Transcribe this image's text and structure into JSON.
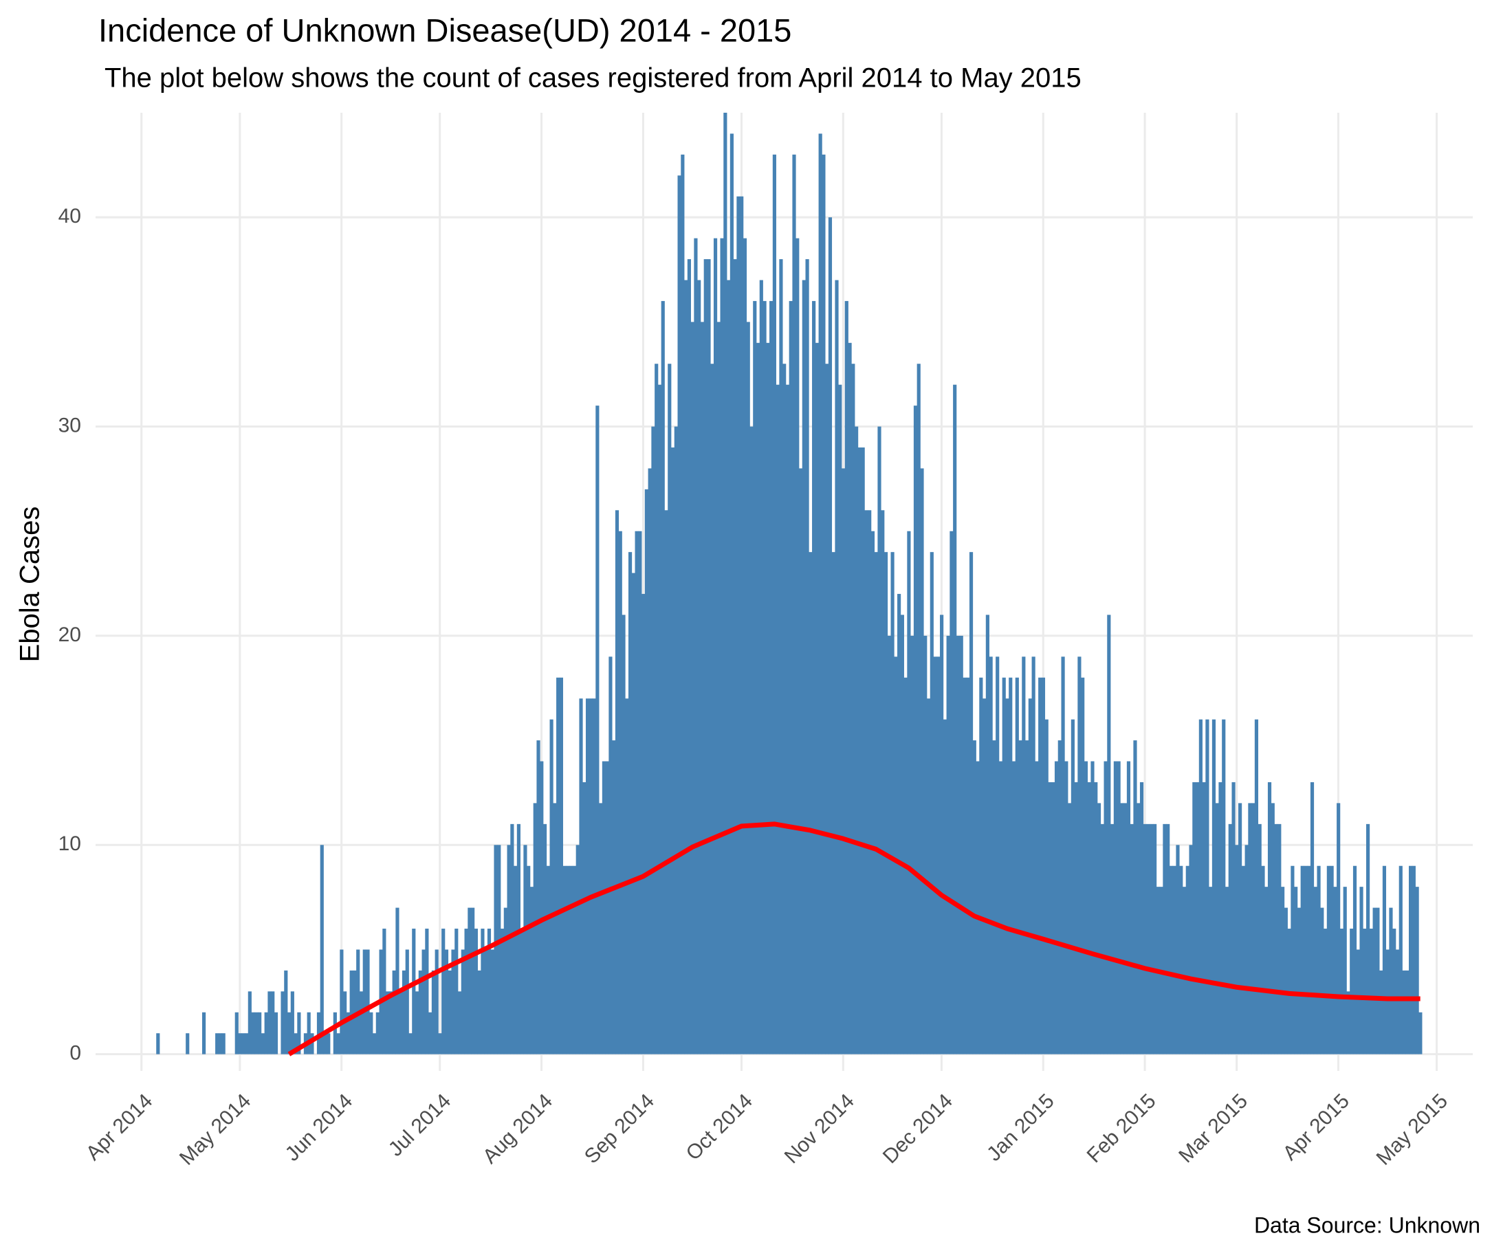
{
  "chart_data": {
    "type": "bar",
    "title": "Incidence of Unknown Disease(UD) 2014 - 2015",
    "subtitle": "The plot below shows the count of cases registered from April 2014 to May 2015",
    "y_label": "Ebola Cases",
    "caption": "Data Source: Unknown",
    "color": "#4682b4",
    "grid": true,
    "xlim": [
      -14,
      406
    ],
    "ylim": [
      -0.8,
      45
    ],
    "yticks": [
      0,
      10,
      20,
      30,
      40
    ],
    "xticks": [
      {
        "value": 0,
        "label": "Apr 2014"
      },
      {
        "value": 30,
        "label": "May 2014"
      },
      {
        "value": 61,
        "label": "Jun 2014"
      },
      {
        "value": 91,
        "label": "Jul 2014"
      },
      {
        "value": 122,
        "label": "Aug 2014"
      },
      {
        "value": 153,
        "label": "Sep 2014"
      },
      {
        "value": 183,
        "label": "Oct 2014"
      },
      {
        "value": 214,
        "label": "Nov 2014"
      },
      {
        "value": 244,
        "label": "Dec 2014"
      },
      {
        "value": 275,
        "label": "Jan 2015"
      },
      {
        "value": 306,
        "label": "Feb 2015"
      },
      {
        "value": 334,
        "label": "Mar 2015"
      },
      {
        "value": 365,
        "label": "Apr 2015"
      },
      {
        "value": 395,
        "label": "May 2015"
      }
    ],
    "x": [
      5,
      6,
      7,
      8,
      9,
      10,
      11,
      12,
      13,
      14,
      15,
      16,
      17,
      18,
      19,
      20,
      21,
      22,
      23,
      24,
      25,
      26,
      27,
      28,
      29,
      30,
      31,
      32,
      33,
      34,
      35,
      36,
      37,
      38,
      39,
      40,
      41,
      42,
      43,
      44,
      45,
      46,
      47,
      48,
      49,
      50,
      51,
      52,
      53,
      54,
      55,
      56,
      57,
      58,
      59,
      60,
      61,
      62,
      63,
      64,
      65,
      66,
      67,
      68,
      69,
      70,
      71,
      72,
      73,
      74,
      75,
      76,
      77,
      78,
      79,
      80,
      81,
      82,
      83,
      84,
      85,
      86,
      87,
      88,
      89,
      90,
      91,
      92,
      93,
      94,
      95,
      96,
      97,
      98,
      99,
      100,
      101,
      102,
      103,
      104,
      105,
      106,
      107,
      108,
      109,
      110,
      111,
      112,
      113,
      114,
      115,
      116,
      117,
      118,
      119,
      120,
      121,
      122,
      123,
      124,
      125,
      126,
      127,
      128,
      129,
      130,
      131,
      132,
      133,
      134,
      135,
      136,
      137,
      138,
      139,
      140,
      141,
      142,
      143,
      144,
      145,
      146,
      147,
      148,
      149,
      150,
      151,
      152,
      153,
      154,
      155,
      156,
      157,
      158,
      159,
      160,
      161,
      162,
      163,
      164,
      165,
      166,
      167,
      168,
      169,
      170,
      171,
      172,
      173,
      174,
      175,
      176,
      177,
      178,
      179,
      180,
      181,
      182,
      183,
      184,
      185,
      186,
      187,
      188,
      189,
      190,
      191,
      192,
      193,
      194,
      195,
      196,
      197,
      198,
      199,
      200,
      201,
      202,
      203,
      204,
      205,
      206,
      207,
      208,
      209,
      210,
      211,
      212,
      213,
      214,
      215,
      216,
      217,
      218,
      219,
      220,
      221,
      222,
      223,
      224,
      225,
      226,
      227,
      228,
      229,
      230,
      231,
      232,
      233,
      234,
      235,
      236,
      237,
      238,
      239,
      240,
      241,
      242,
      243,
      244,
      245,
      246,
      247,
      248,
      249,
      250,
      251,
      252,
      253,
      254,
      255,
      256,
      257,
      258,
      259,
      260,
      261,
      262,
      263,
      264,
      265,
      266,
      267,
      268,
      269,
      270,
      271,
      272,
      273,
      274,
      275,
      276,
      277,
      278,
      279,
      280,
      281,
      282,
      283,
      284,
      285,
      286,
      287,
      288,
      289,
      290,
      291,
      292,
      293,
      294,
      295,
      296,
      297,
      298,
      299,
      300,
      301,
      302,
      303,
      304,
      305,
      306,
      307,
      308,
      309,
      310,
      311,
      312,
      313,
      314,
      315,
      316,
      317,
      318,
      319,
      320,
      321,
      322,
      323,
      324,
      325,
      326,
      327,
      328,
      329,
      330,
      331,
      332,
      333,
      334,
      335,
      336,
      337,
      338,
      339,
      340,
      341,
      342,
      343,
      344,
      345,
      346,
      347,
      348,
      349,
      350,
      351,
      352,
      353,
      354,
      355,
      356,
      357,
      358,
      359,
      360,
      361,
      362,
      363,
      364,
      365,
      366,
      367,
      368,
      369,
      370,
      371,
      372,
      373,
      374,
      375,
      376,
      377,
      378,
      379,
      380,
      381,
      382,
      383,
      384,
      385,
      386,
      387,
      388,
      389,
      390
    ],
    "values": [
      1,
      0,
      0,
      0,
      0,
      0,
      0,
      0,
      0,
      1,
      0,
      0,
      0,
      0,
      2,
      0,
      0,
      0,
      1,
      1,
      1,
      0,
      0,
      0,
      2,
      1,
      1,
      1,
      3,
      2,
      2,
      2,
      1,
      2,
      3,
      3,
      2,
      0,
      3,
      4,
      2,
      3,
      1,
      2,
      0,
      1,
      2,
      1,
      0,
      2,
      10,
      1,
      1,
      0,
      2,
      1,
      5,
      3,
      2,
      4,
      4,
      5,
      3,
      5,
      5,
      2,
      1,
      2,
      5,
      6,
      3,
      3,
      4,
      7,
      3,
      4,
      5,
      1,
      6,
      3,
      4,
      5,
      6,
      2,
      4,
      5,
      1,
      6,
      5,
      4,
      5,
      6,
      3,
      5,
      6,
      7,
      7,
      6,
      4,
      6,
      5,
      6,
      5,
      10,
      10,
      6,
      7,
      10,
      11,
      9,
      11,
      6,
      10,
      9,
      8,
      12,
      15,
      14,
      11,
      9,
      16,
      12,
      18,
      18,
      9,
      9,
      9,
      9,
      10,
      17,
      13,
      17,
      17,
      17,
      31,
      12,
      14,
      14,
      19,
      15,
      26,
      25,
      21,
      17,
      24,
      23,
      25,
      25,
      22,
      27,
      28,
      30,
      33,
      32,
      36,
      26,
      33,
      29,
      30,
      42,
      43,
      37,
      38,
      35,
      39,
      37,
      35,
      38,
      38,
      33,
      39,
      35,
      39,
      45,
      37,
      44,
      38,
      41,
      41,
      39,
      35,
      30,
      36,
      34,
      37,
      36,
      34,
      36,
      43,
      32,
      38,
      33,
      32,
      36,
      43,
      39,
      28,
      37,
      38,
      24,
      36,
      34,
      44,
      43,
      33,
      40,
      24,
      37,
      32,
      28,
      36,
      34,
      33,
      30,
      29,
      29,
      26,
      26,
      25,
      24,
      30,
      26,
      24,
      20,
      24,
      19,
      22,
      21,
      18,
      25,
      20,
      31,
      33,
      28,
      20,
      17,
      24,
      19,
      19,
      21,
      16,
      20,
      25,
      32,
      20,
      20,
      18,
      18,
      24,
      15,
      14,
      18,
      17,
      21,
      19,
      15,
      19,
      14,
      18,
      17,
      18,
      14,
      18,
      15,
      19,
      15,
      17,
      19,
      14,
      18,
      18,
      16,
      13,
      13,
      14,
      15,
      19,
      14,
      12,
      16,
      13,
      19,
      18,
      14,
      13,
      14,
      13,
      12,
      11,
      14,
      21,
      11,
      14,
      14,
      12,
      12,
      14,
      11,
      15,
      12,
      13,
      11,
      11,
      11,
      11,
      8,
      8,
      11,
      11,
      9,
      9,
      10,
      9,
      8,
      9,
      10,
      13,
      13,
      16,
      13,
      16,
      8,
      16,
      12,
      13,
      16,
      8,
      11,
      13,
      10,
      12,
      9,
      10,
      12,
      12,
      16,
      11,
      9,
      8,
      13,
      12,
      11,
      11,
      8,
      7,
      6,
      9,
      8,
      7,
      9,
      9,
      9,
      13,
      8,
      9,
      7,
      6,
      9,
      9,
      8,
      12,
      6,
      8,
      3,
      6,
      9,
      5,
      8,
      6,
      11,
      6,
      7,
      7,
      4,
      9,
      5,
      7,
      6,
      5,
      9,
      4,
      4,
      9,
      9,
      8,
      2
    ],
    "trend": {
      "type": "line",
      "color": "#ff0000",
      "x": [
        45,
        61,
        76,
        91,
        107,
        122,
        137,
        153,
        168,
        183,
        193,
        204,
        214,
        224,
        234,
        244,
        254,
        264,
        275,
        290,
        306,
        320,
        334,
        350,
        365,
        380,
        390
      ],
      "values": [
        0,
        1.5,
        2.8,
        4.0,
        5.2,
        6.4,
        7.5,
        8.5,
        9.9,
        10.9,
        11.0,
        10.7,
        10.3,
        9.8,
        8.9,
        7.6,
        6.6,
        6.0,
        5.5,
        4.8,
        4.1,
        3.6,
        3.2,
        2.9,
        2.75,
        2.65,
        2.65
      ]
    }
  }
}
